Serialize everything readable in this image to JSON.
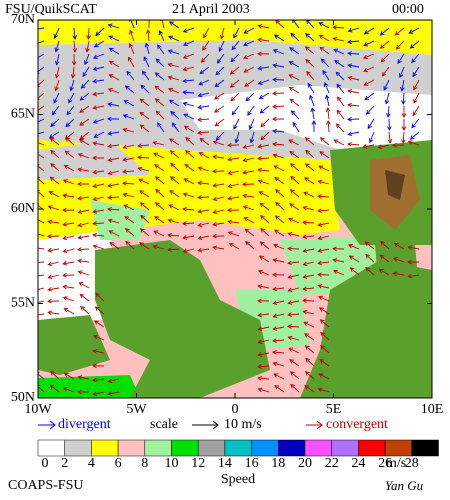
{
  "header": {
    "product": "FSU/QuikSCAT",
    "date": "21 April 2003",
    "time": "00:00"
  },
  "map": {
    "latlim": [
      50,
      70
    ],
    "lonlim": [
      -10,
      10
    ],
    "lat_ticks": [
      {
        "value": 70,
        "label": "70N"
      },
      {
        "value": 65,
        "label": "65N"
      },
      {
        "value": 60,
        "label": "60N"
      },
      {
        "value": 55,
        "label": "55N"
      },
      {
        "value": 50,
        "label": "50N"
      }
    ],
    "lon_ticks": [
      {
        "value": -10,
        "label": "10W"
      },
      {
        "value": -5,
        "label": "5W"
      },
      {
        "value": 0,
        "label": "0"
      },
      {
        "value": 5,
        "label": "5E"
      },
      {
        "value": 10,
        "label": "10E"
      }
    ]
  },
  "legend": {
    "divergent": "divergent",
    "scale": "scale",
    "scale_value": "10 m/s",
    "convergent": "convergent"
  },
  "colorbar": {
    "ticks": [
      0,
      2,
      4,
      6,
      8,
      10,
      12,
      14,
      16,
      18,
      20,
      22,
      24,
      26,
      28
    ],
    "unit": "m/s",
    "label": "Speed",
    "colors": [
      "#ffffff",
      "#d0d0d0",
      "#ffff00",
      "#ffc0c0",
      "#a0f0a0",
      "#00e000",
      "#a0a0a0",
      "#00c0c0",
      "#0090ff",
      "#0000c0",
      "#ff50ff",
      "#b070ff",
      "#ff0000",
      "#c04000",
      "#000000"
    ]
  },
  "footer": {
    "org": "COAPS-FSU",
    "author": "Yan Gu"
  }
}
